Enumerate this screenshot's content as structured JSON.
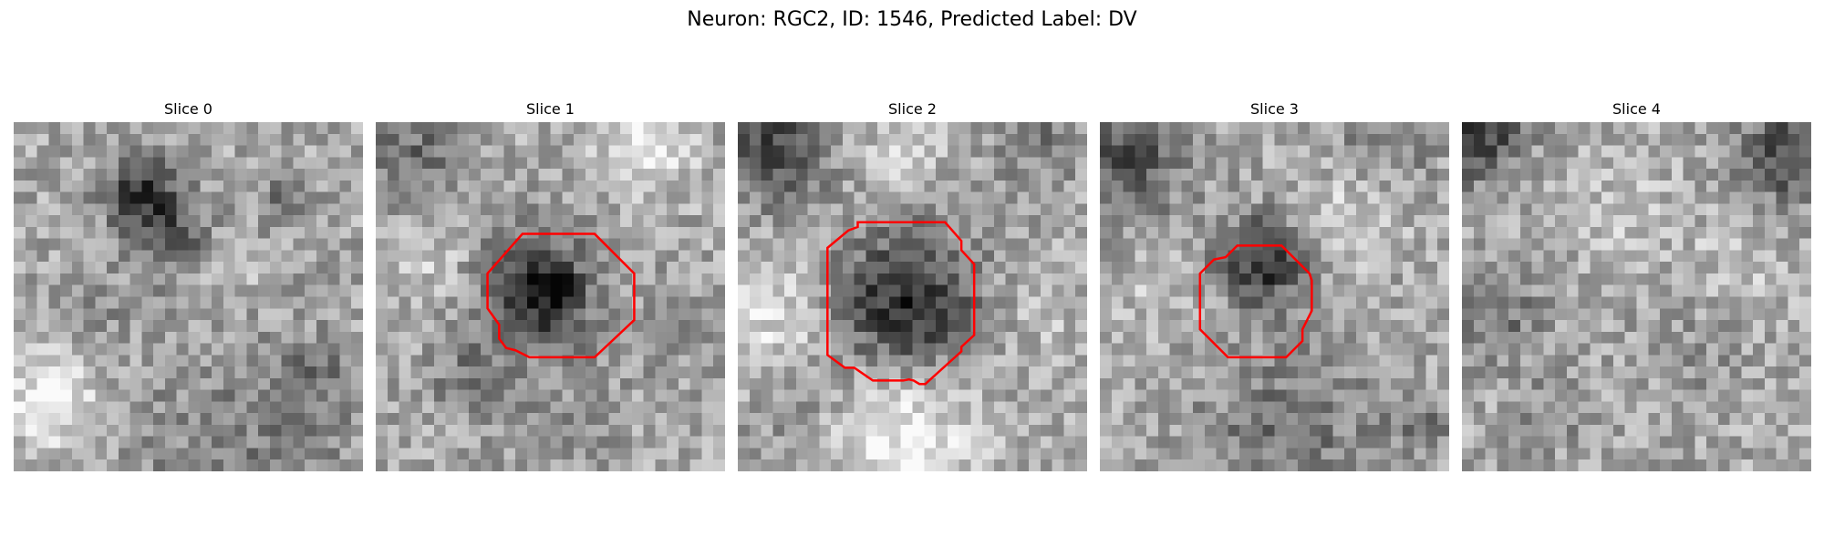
{
  "title": "Neuron: RGC2, ID: 1546, Predicted Label: DV",
  "panels": [
    {
      "title": "Slice 0",
      "contour": false,
      "seed": 11
    },
    {
      "title": "Slice 1",
      "contour": true,
      "seed": 23
    },
    {
      "title": "Slice 2",
      "contour": true,
      "seed": 37
    },
    {
      "title": "Slice 3",
      "contour": true,
      "seed": 51
    },
    {
      "title": "Slice 4",
      "contour": false,
      "seed": 67
    }
  ],
  "colors": {
    "contour": "#ff0000",
    "background": "#ffffff"
  }
}
